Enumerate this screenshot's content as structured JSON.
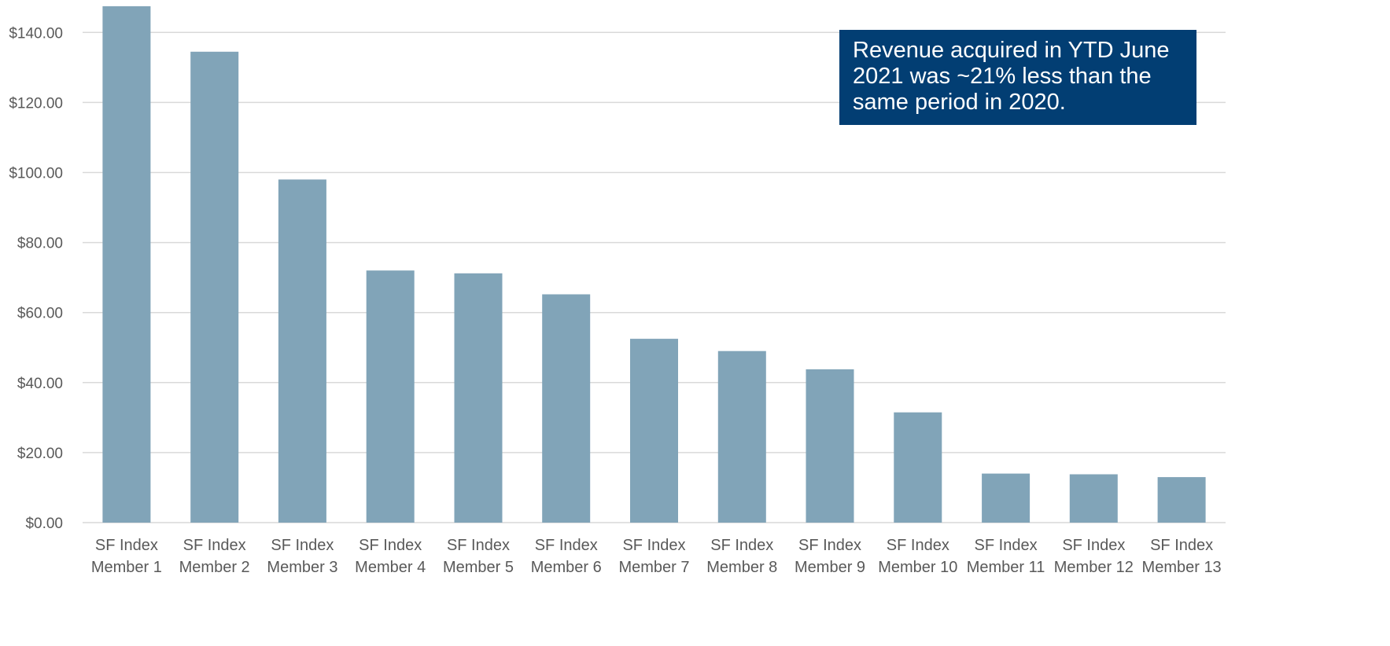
{
  "chart_data": {
    "type": "bar",
    "categories": [
      [
        "SF Index",
        "Member 1"
      ],
      [
        "SF Index",
        "Member 2"
      ],
      [
        "SF Index",
        "Member 3"
      ],
      [
        "SF Index",
        "Member 4"
      ],
      [
        "SF Index",
        "Member 5"
      ],
      [
        "SF Index",
        "Member 6"
      ],
      [
        "SF Index",
        "Member 7"
      ],
      [
        "SF Index",
        "Member 8"
      ],
      [
        "SF Index",
        "Member 9"
      ],
      [
        "SF Index",
        "Member 10"
      ],
      [
        "SF Index",
        "Member 11"
      ],
      [
        "SF Index",
        "Member 12"
      ],
      [
        "SF Index",
        "Member 13"
      ]
    ],
    "values": [
      147.5,
      134.5,
      98.0,
      72.0,
      71.2,
      65.2,
      52.5,
      49.0,
      43.8,
      31.5,
      14.0,
      13.8,
      13.0
    ],
    "yticks": [
      "$0.00",
      "$20.00",
      "$40.00",
      "$60.00",
      "$80.00",
      "$100.00",
      "$120.00",
      "$140.00"
    ],
    "ylim": [
      0,
      147.5
    ],
    "grid": true,
    "bar_color": "#81a4b8",
    "annotation": "Revenue acquired in YTD June 2021 was ~21% less than the same period in 2020.",
    "annotation_bg": "#023e73"
  }
}
